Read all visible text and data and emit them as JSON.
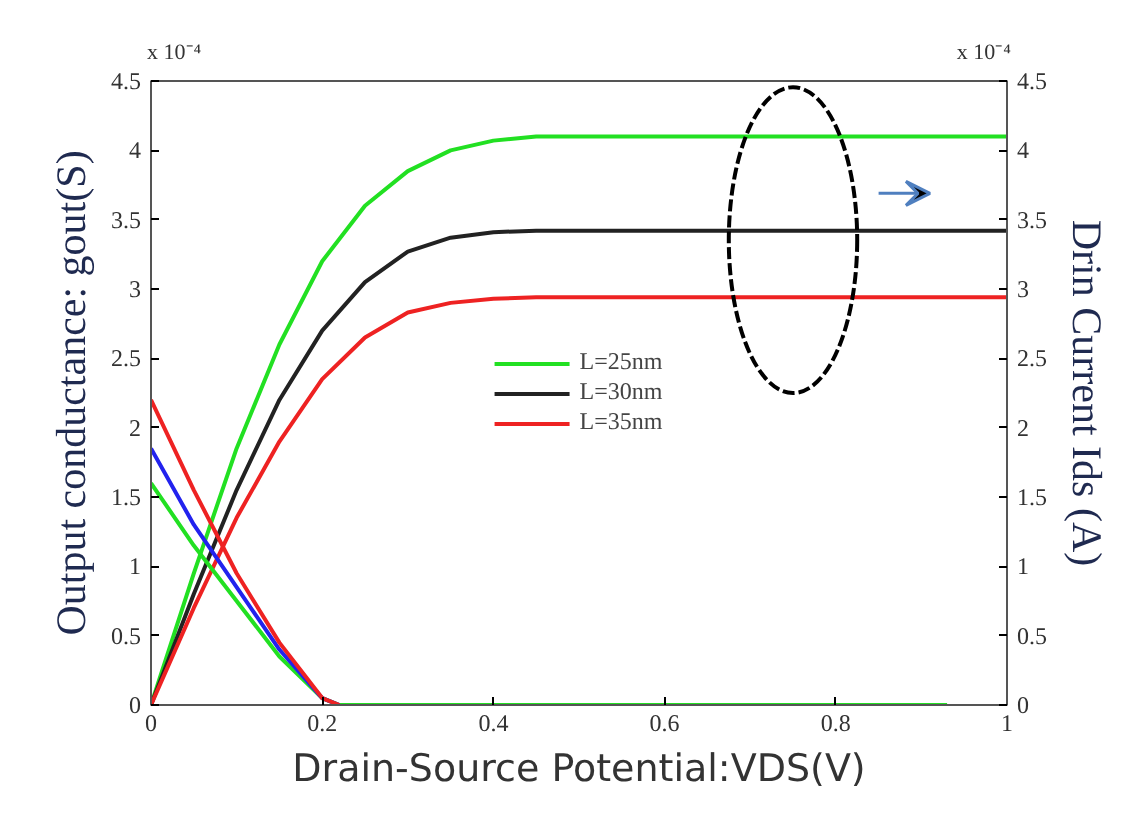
{
  "chart_data": {
    "type": "line",
    "xlabel": "Drain-Source Potential:VDS(V)",
    "ylabel": "Output conductance: gout(S)",
    "y2label": "Drin Current Ids (A)",
    "xlim": [
      0,
      1
    ],
    "xticks": [
      0,
      0.2,
      0.4,
      0.6,
      0.8,
      1
    ],
    "ylim": [
      0,
      4.5
    ],
    "yticks": [
      0,
      0.5,
      1,
      1.5,
      2,
      2.5,
      3,
      3.5,
      4,
      4.5
    ],
    "y2lim": [
      0,
      4.5
    ],
    "y2ticks": [
      0,
      0.5,
      1,
      1.5,
      2,
      2.5,
      3,
      3.5,
      4,
      4.5
    ],
    "annotations": [
      "x 10⁻⁴",
      "x 10⁻⁴"
    ],
    "legend": "center",
    "grid": false,
    "marker": "none",
    "line_style": "solid",
    "series": [
      {
        "name": "L=25nm",
        "color": "#22e022",
        "x": [
          0,
          0.05,
          0.1,
          0.15,
          0.2,
          0.25,
          0.3,
          0.35,
          0.4,
          0.45,
          1
        ],
        "values": [
          0,
          0.95,
          1.85,
          2.6,
          3.2,
          3.6,
          3.85,
          4.0,
          4.07,
          4.1,
          4.1
        ]
      },
      {
        "name": "L=30nm",
        "color": "#222222",
        "x": [
          0,
          0.05,
          0.1,
          0.15,
          0.2,
          0.25,
          0.3,
          0.35,
          0.4,
          0.45,
          1
        ],
        "values": [
          0,
          0.8,
          1.55,
          2.2,
          2.7,
          3.05,
          3.27,
          3.37,
          3.41,
          3.42,
          3.42
        ]
      },
      {
        "name": "L=35nm",
        "color": "#ee2222",
        "x": [
          0,
          0.05,
          0.1,
          0.15,
          0.2,
          0.25,
          0.3,
          0.35,
          0.4,
          0.45,
          1
        ],
        "values": [
          0,
          0.7,
          1.35,
          1.9,
          2.35,
          2.65,
          2.83,
          2.9,
          2.93,
          2.94,
          2.94
        ]
      },
      {
        "color": "#22e022",
        "x": [
          0,
          0.05,
          0.1,
          0.15,
          0.2,
          0.22,
          0.93
        ],
        "values": [
          1.6,
          1.15,
          0.75,
          0.35,
          0.05,
          0,
          0
        ]
      },
      {
        "color": "#2222ee",
        "x": [
          0,
          0.05,
          0.1,
          0.15,
          0.2,
          0.22
        ],
        "values": [
          1.85,
          1.3,
          0.85,
          0.4,
          0.05,
          0
        ]
      },
      {
        "color": "#ee2222",
        "x": [
          0,
          0.05,
          0.1,
          0.15,
          0.2,
          0.22
        ],
        "values": [
          2.2,
          1.55,
          0.95,
          0.45,
          0.05,
          0
        ]
      }
    ]
  }
}
